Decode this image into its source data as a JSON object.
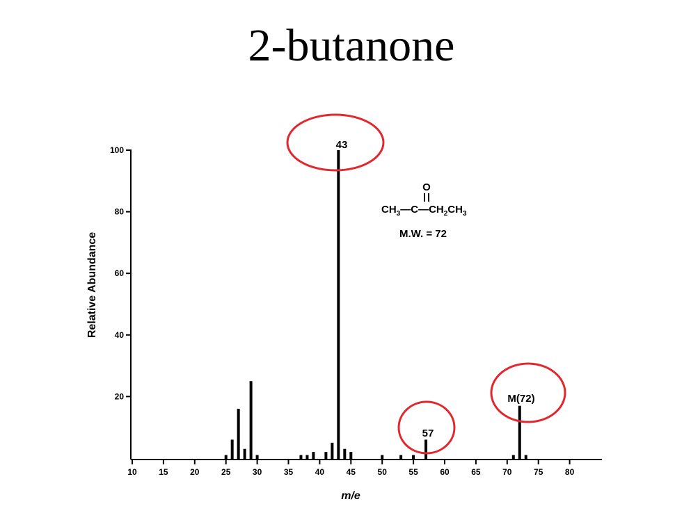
{
  "title": "2-butanone",
  "chart_data": {
    "type": "bar",
    "title": "2-butanone",
    "xlabel": "m/e",
    "ylabel": "Relative Abundance",
    "xlim": [
      10,
      84
    ],
    "ylim": [
      0,
      100
    ],
    "x_ticks": [
      "10",
      "15",
      "20",
      "25",
      "30",
      "35",
      "40",
      "45",
      "50",
      "55",
      "60",
      "65",
      "70",
      "75",
      "80"
    ],
    "y_ticks": [
      "20",
      "40",
      "60",
      "80",
      "100"
    ],
    "grid": false,
    "series": [
      {
        "x": [
          25,
          26,
          27,
          28,
          29,
          30,
          37,
          38,
          39,
          41,
          42,
          43,
          44,
          45,
          50,
          53,
          55,
          57,
          71,
          72,
          73
        ],
        "values": [
          1,
          6,
          16,
          3,
          25,
          1,
          1,
          1,
          2,
          2,
          5,
          100,
          3,
          2,
          1,
          1,
          1,
          6,
          1,
          17,
          1
        ]
      }
    ],
    "annotations": {
      "peak_43": "43",
      "peak_57": "57",
      "peak_72": "M(72)",
      "structure_o": "O",
      "structure_formula": [
        "CH",
        "3",
        "—C—CH",
        "2",
        "CH",
        "3"
      ],
      "mw": "M.W. = 72"
    },
    "highlight_color": "#e0282e"
  }
}
